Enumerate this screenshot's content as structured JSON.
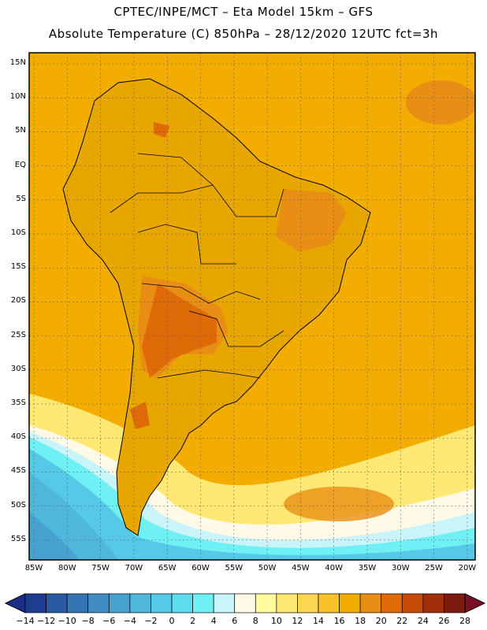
{
  "header": {
    "line1": "CPTEC/INPE/MCT –  Eta Model 15km – GFS",
    "line2": "Absolute Temperature (C) 850hPa – 28/12/2020 12UTC fct=3h"
  },
  "map": {
    "region": "South America",
    "lat_labels": [
      "15N",
      "10N",
      "5N",
      "EQ",
      "5S",
      "10S",
      "15S",
      "20S",
      "25S",
      "30S",
      "35S",
      "40S",
      "45S",
      "50S",
      "55S"
    ],
    "lon_labels": [
      "85W",
      "80W",
      "75W",
      "70W",
      "65W",
      "60W",
      "55W",
      "50W",
      "45W",
      "40W",
      "35W",
      "30W",
      "25W",
      "20W"
    ],
    "ocean_color": "#f2ad00",
    "land_dominant_color": "#e8a600"
  },
  "colorbar": {
    "labels": [
      "-14",
      "-12",
      "-10",
      "-8",
      "-6",
      "-4",
      "-2",
      "0",
      "2",
      "4",
      "6",
      "8",
      "10",
      "12",
      "14",
      "16",
      "18",
      "20",
      "22",
      "24",
      "26",
      "28"
    ],
    "colors": [
      "#1e3c90",
      "#2b5aa3",
      "#3575b5",
      "#3f8dc3",
      "#48a2cf",
      "#4fb7dc",
      "#55c9e7",
      "#5ddcef",
      "#6ff0f5",
      "#c8f4fa",
      "#fffae8",
      "#fff9a0",
      "#ffe873",
      "#ffd652",
      "#f8c22a",
      "#f2ad00",
      "#e88e14",
      "#de6a08",
      "#c64b08",
      "#a32e0c",
      "#7d1a12"
    ],
    "low_end_color": "#1b2f86",
    "high_end_color": "#7a0f28"
  }
}
